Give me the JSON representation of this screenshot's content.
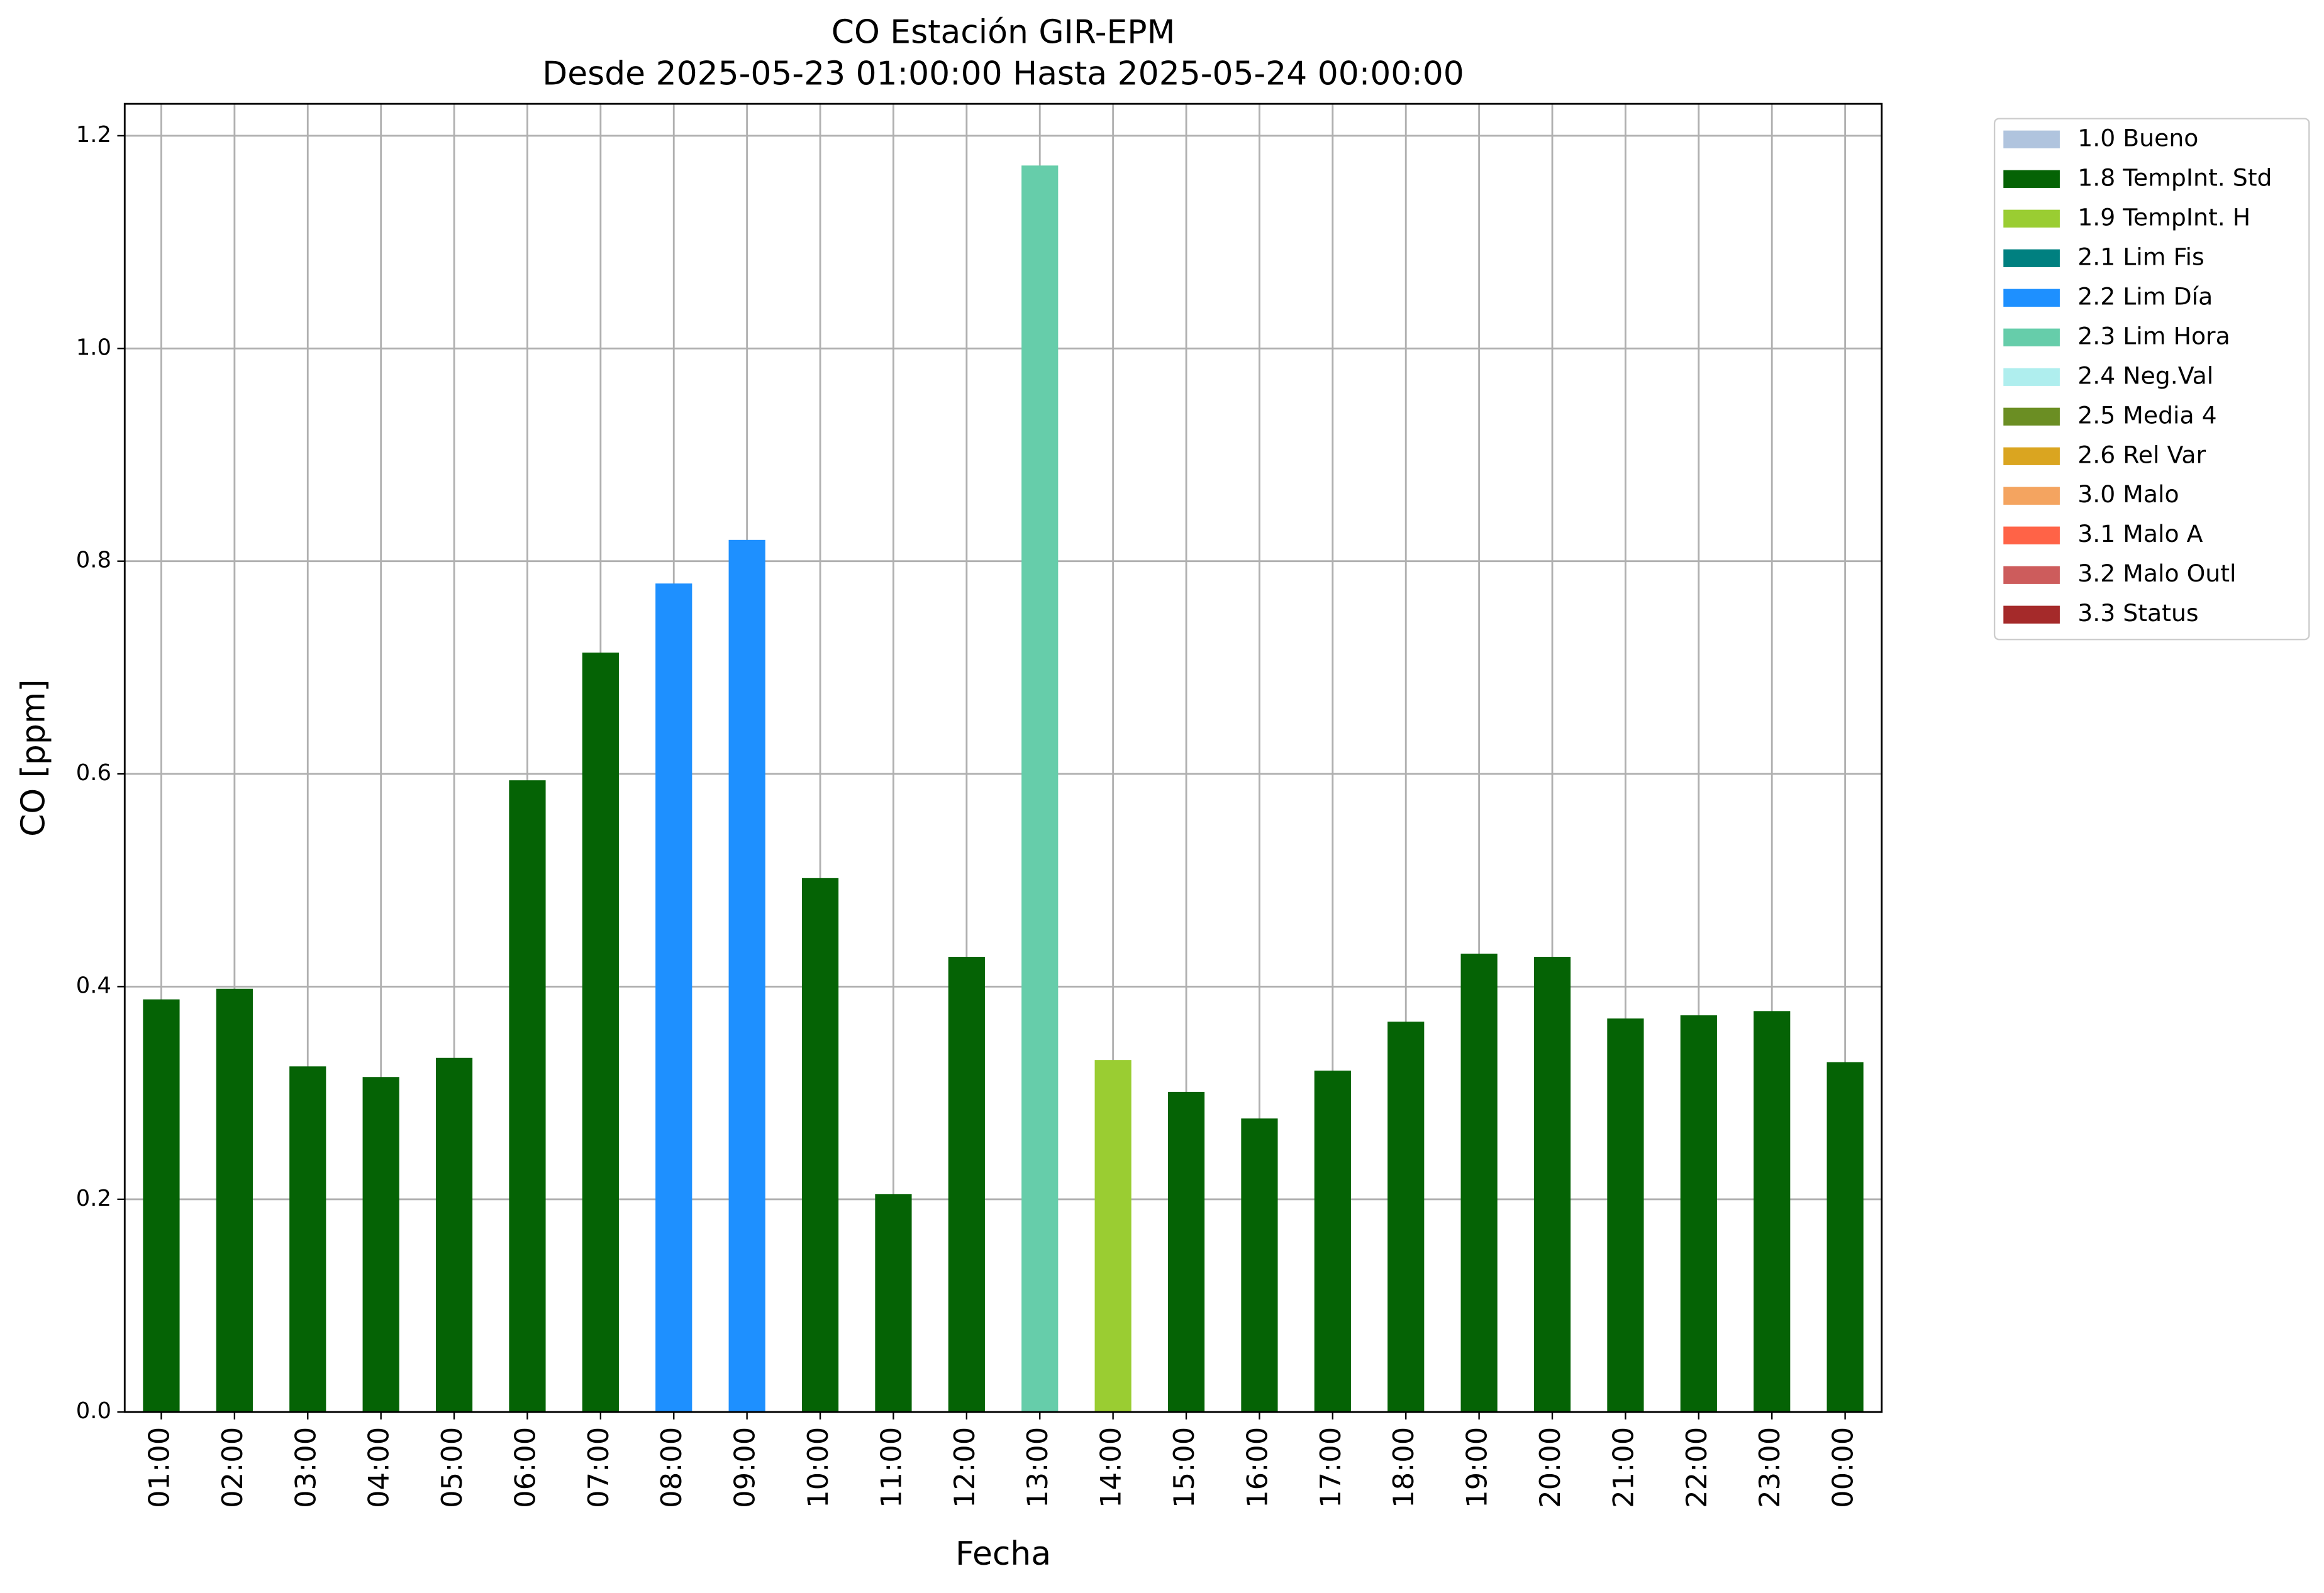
{
  "chart_data": {
    "type": "stacked_bar",
    "title": "CO Estación GIR-EPM",
    "subtitle": "Desde 2025-05-23 01:00:00 Hasta 2025-05-24 00:00:00",
    "x_label": "Fecha",
    "y_label": "CO [ppm]",
    "categories": [
      "01:00",
      "02:00",
      "03:00",
      "04:00",
      "05:00",
      "06:00",
      "07:00",
      "08:00",
      "09:00",
      "10:00",
      "11:00",
      "12:00",
      "13:00",
      "14:00",
      "15:00",
      "16:00",
      "17:00",
      "18:00",
      "19:00",
      "20:00",
      "21:00",
      "22:00",
      "23:00",
      "00:00"
    ],
    "series": [
      {
        "name": "1.0 Bueno",
        "color": "#b0c4de",
        "values": [
          null,
          null,
          null,
          null,
          null,
          null,
          null,
          null,
          null,
          null,
          null,
          null,
          null,
          null,
          null,
          null,
          null,
          null,
          null,
          null,
          null,
          null,
          null,
          null
        ]
      },
      {
        "name": "1.8 TempInt. Std",
        "color": "#056305",
        "values": [
          0.388,
          0.398,
          0.325,
          0.315,
          0.333,
          0.594,
          0.714,
          null,
          null,
          0.502,
          0.205,
          0.428,
          null,
          null,
          0.301,
          0.276,
          0.321,
          0.367,
          0.431,
          0.428,
          0.37,
          0.373,
          0.377,
          0.329
        ]
      },
      {
        "name": "1.9 TempInt. H",
        "color": "#9acd32",
        "values": [
          null,
          null,
          null,
          null,
          null,
          null,
          null,
          null,
          null,
          null,
          null,
          null,
          null,
          0.331,
          null,
          null,
          null,
          null,
          null,
          null,
          null,
          null,
          null,
          null
        ]
      },
      {
        "name": "2.1 Lim Fis",
        "color": "#008080",
        "values": [
          null,
          null,
          null,
          null,
          null,
          null,
          null,
          null,
          null,
          null,
          null,
          null,
          null,
          null,
          null,
          null,
          null,
          null,
          null,
          null,
          null,
          null,
          null,
          null
        ]
      },
      {
        "name": "2.2 Lim Día",
        "color": "#1e90ff",
        "values": [
          null,
          null,
          null,
          null,
          null,
          null,
          null,
          0.779,
          0.82,
          null,
          null,
          null,
          null,
          null,
          null,
          null,
          null,
          null,
          null,
          null,
          null,
          null,
          null,
          null
        ]
      },
      {
        "name": "2.3 Lim Hora",
        "color": "#66cdaa",
        "values": [
          null,
          null,
          null,
          null,
          null,
          null,
          null,
          null,
          null,
          null,
          null,
          null,
          1.172,
          null,
          null,
          null,
          null,
          null,
          null,
          null,
          null,
          null,
          null,
          null
        ]
      },
      {
        "name": "2.4 Neg.Val",
        "color": "#afeeee",
        "values": [
          null,
          null,
          null,
          null,
          null,
          null,
          null,
          null,
          null,
          null,
          null,
          null,
          null,
          null,
          null,
          null,
          null,
          null,
          null,
          null,
          null,
          null,
          null,
          null
        ]
      },
      {
        "name": "2.5 Media 4",
        "color": "#6b8e23",
        "values": [
          null,
          null,
          null,
          null,
          null,
          null,
          null,
          null,
          null,
          null,
          null,
          null,
          null,
          null,
          null,
          null,
          null,
          null,
          null,
          null,
          null,
          null,
          null,
          null
        ]
      },
      {
        "name": "2.6 Rel Var",
        "color": "#daa520",
        "values": [
          null,
          null,
          null,
          null,
          null,
          null,
          null,
          null,
          null,
          null,
          null,
          null,
          null,
          null,
          null,
          null,
          null,
          null,
          null,
          null,
          null,
          null,
          null,
          null
        ]
      },
      {
        "name": "3.0 Malo",
        "color": "#f4a460",
        "values": [
          null,
          null,
          null,
          null,
          null,
          null,
          null,
          null,
          null,
          null,
          null,
          null,
          null,
          null,
          null,
          null,
          null,
          null,
          null,
          null,
          null,
          null,
          null,
          null
        ]
      },
      {
        "name": "3.1 Malo A",
        "color": "#ff6347",
        "values": [
          null,
          null,
          null,
          null,
          null,
          null,
          null,
          null,
          null,
          null,
          null,
          null,
          null,
          null,
          null,
          null,
          null,
          null,
          null,
          null,
          null,
          null,
          null,
          null
        ]
      },
      {
        "name": "3.2 Malo Outl",
        "color": "#cd5c5c",
        "values": [
          null,
          null,
          null,
          null,
          null,
          null,
          null,
          null,
          null,
          null,
          null,
          null,
          null,
          null,
          null,
          null,
          null,
          null,
          null,
          null,
          null,
          null,
          null,
          null
        ]
      },
      {
        "name": "3.3 Status",
        "color": "#a52a2a",
        "values": [
          null,
          null,
          null,
          null,
          null,
          null,
          null,
          null,
          null,
          null,
          null,
          null,
          null,
          null,
          null,
          null,
          null,
          null,
          null,
          null,
          null,
          null,
          null,
          null
        ]
      }
    ],
    "ylim": [
      0,
      1.23
    ],
    "yticks": [
      {
        "value": 0,
        "label": "0.0"
      },
      0.2,
      0.4,
      0.6,
      0.8,
      {
        "value": 1,
        "label": "1.0"
      },
      1.2
    ],
    "grid": true,
    "legend": "outside-right"
  }
}
